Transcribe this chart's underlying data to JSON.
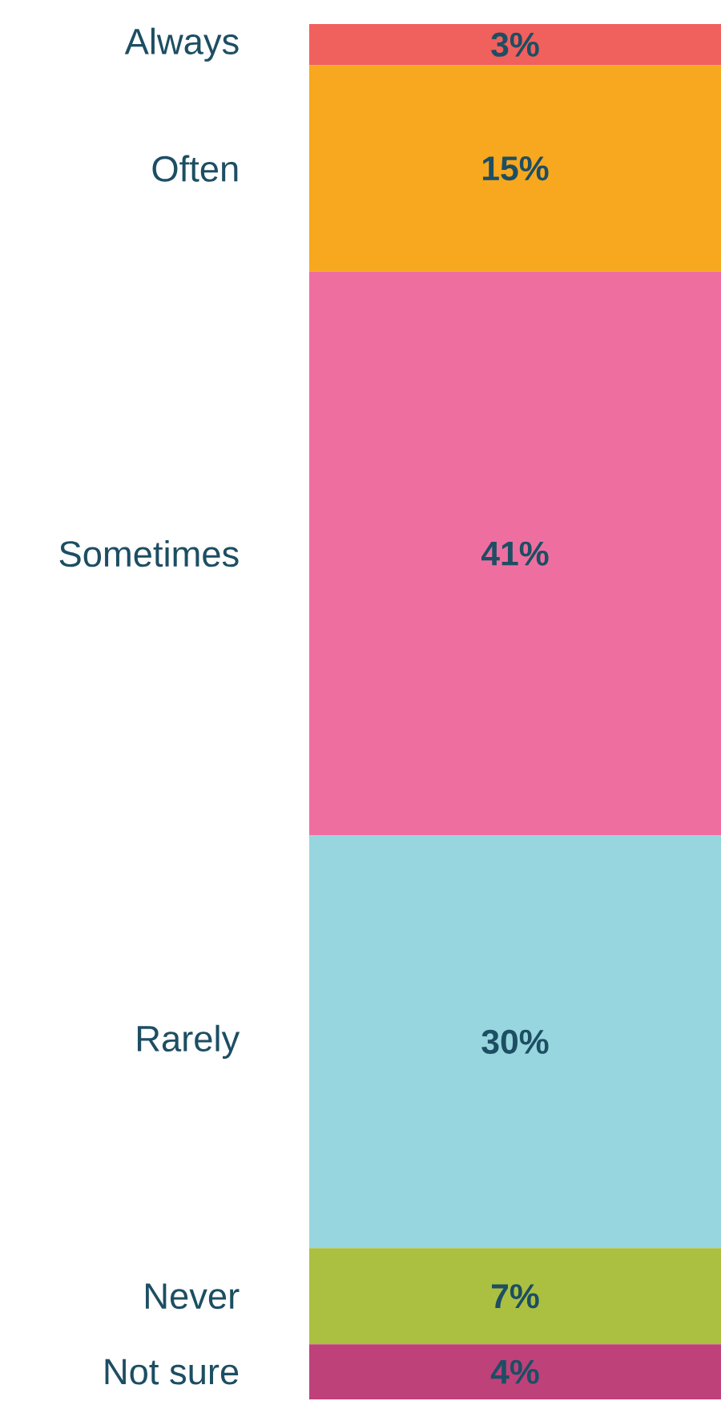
{
  "chart_data": {
    "type": "bar",
    "stacked": true,
    "categories": [
      null
    ],
    "series": [
      {
        "name": "Not sure",
        "color": "#bf417a",
        "values": [
          4
        ],
        "value_labels": [
          "4%"
        ]
      },
      {
        "name": "Never",
        "color": "#abc040",
        "values": [
          7
        ],
        "value_labels": [
          "7%"
        ]
      },
      {
        "name": "Rarely",
        "color": "#97d6de",
        "values": [
          30
        ],
        "value_labels": [
          "30%"
        ]
      },
      {
        "name": "Sometimes",
        "color": "#ef6ea0",
        "values": [
          41
        ],
        "value_labels": [
          "41%"
        ]
      },
      {
        "name": "Often",
        "color": "#f7a81e",
        "values": [
          15
        ],
        "value_labels": [
          "15%"
        ]
      },
      {
        "name": "Always",
        "color": "#f0605d",
        "values": [
          3
        ],
        "value_labels": [
          "3%"
        ]
      }
    ]
  }
}
